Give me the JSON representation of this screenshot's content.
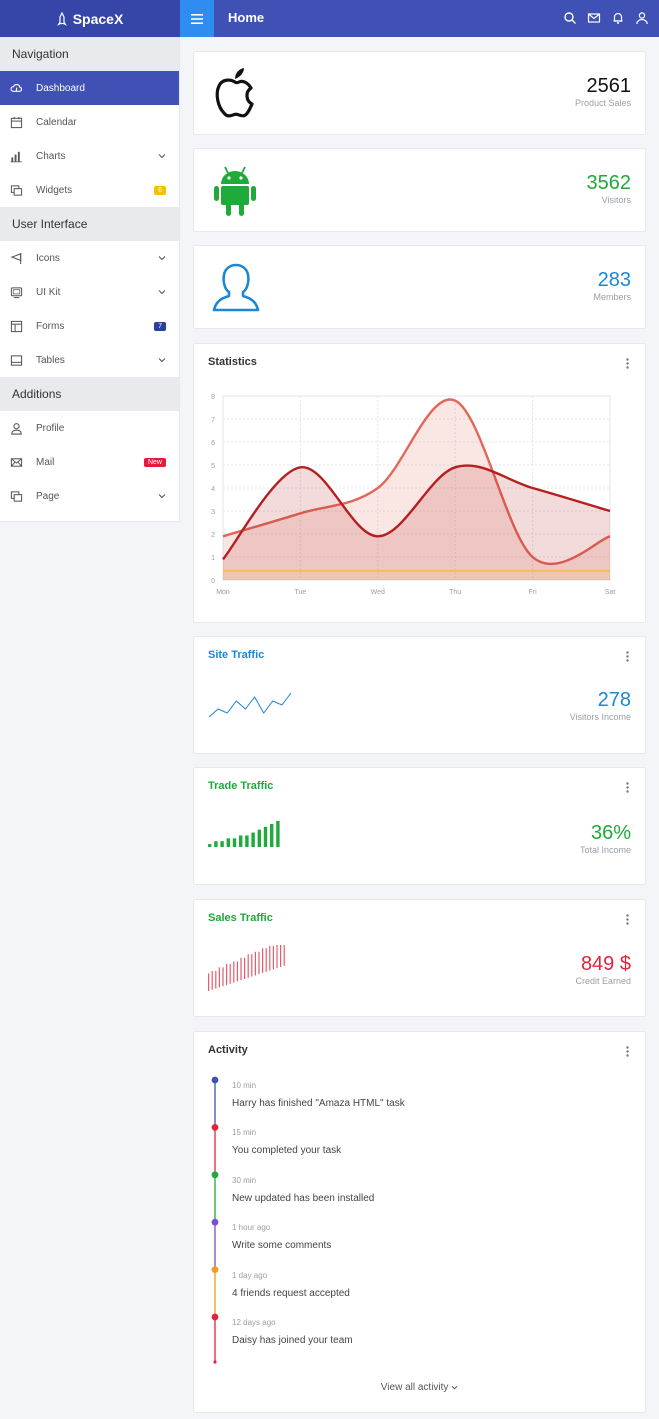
{
  "brand": {
    "name": "SpaceX",
    "logo_icon": "rocket-icon"
  },
  "header": {
    "title": "Home",
    "icons": [
      "search-icon",
      "mail-icon",
      "bell-icon",
      "user-icon"
    ]
  },
  "sidebar": {
    "sections": [
      {
        "title": "Navigation",
        "items": [
          {
            "label": "Dashboard",
            "icon": "cloud-icon",
            "active": true
          },
          {
            "label": "Calendar",
            "icon": "calendar-icon"
          },
          {
            "label": "Charts",
            "icon": "bar-chart-icon",
            "has_children": true
          },
          {
            "label": "Widgets",
            "icon": "widgets-icon",
            "badge": "6"
          }
        ]
      },
      {
        "title": "User Interface",
        "items": [
          {
            "label": "Icons",
            "icon": "flag-icon",
            "has_children": true
          },
          {
            "label": "UI Kit",
            "icon": "monitor-icon",
            "has_children": true
          },
          {
            "label": "Forms",
            "icon": "form-icon",
            "badge": "7"
          },
          {
            "label": "Tables",
            "icon": "table-icon",
            "has_children": true
          }
        ]
      },
      {
        "title": "Additions",
        "items": [
          {
            "label": "Profile",
            "icon": "person-icon"
          },
          {
            "label": "Mail",
            "icon": "envelope-icon",
            "badge": "New"
          },
          {
            "label": "Page",
            "icon": "pages-icon",
            "has_children": true
          }
        ]
      }
    ]
  },
  "stats": [
    {
      "value": "2561",
      "label": "Product Sales",
      "icon": "apple-icon",
      "color": "#111111"
    },
    {
      "value": "3562",
      "label": "Visitors",
      "icon": "android-icon",
      "color": "#1faa3a"
    },
    {
      "value": "283",
      "label": "Members",
      "icon": "member-icon",
      "color": "#1d88d2"
    }
  ],
  "statistics": {
    "title": "Statistics",
    "chart_data": {
      "type": "area",
      "categories": [
        "Mon",
        "Tue",
        "Wed",
        "Thu",
        "Fri",
        "Sat"
      ],
      "ylim": [
        0,
        8
      ],
      "yticks": [
        0,
        1,
        2,
        3,
        4,
        5,
        6,
        7,
        8
      ],
      "grid": true,
      "series": [
        {
          "values": [
            1.9,
            2.9,
            4.0,
            7.8,
            1.0,
            1.9
          ],
          "color": "#e0675a"
        },
        {
          "values": [
            0.9,
            4.9,
            1.9,
            4.9,
            4.0,
            3.0
          ],
          "color": "#b51f1f"
        },
        {
          "values": [
            0.4,
            0.4,
            0.4,
            0.4,
            0.4,
            0.4
          ],
          "color": "#f5c24a"
        }
      ]
    }
  },
  "traffic": [
    {
      "title": "Site Traffic",
      "value": "278",
      "label": "Visitors Income",
      "color": "#1d88d2",
      "chart_data": {
        "type": "line",
        "values": [
          2,
          4,
          3,
          6,
          4,
          7,
          3,
          6,
          5,
          8
        ]
      }
    },
    {
      "title": "Trade Traffic",
      "value": "36%",
      "label": "Total Income",
      "color": "#1faa3a",
      "chart_data": {
        "type": "bar",
        "values": [
          1,
          2,
          2,
          3,
          3,
          4,
          4,
          5,
          6,
          7,
          8,
          9
        ]
      }
    },
    {
      "title": "Sales Traffic",
      "value": "849 $",
      "label": "Credit Earned",
      "color": "#e0243c",
      "chart_data": {
        "type": "bar",
        "values": [
          3,
          4,
          3,
          5,
          4,
          6,
          5,
          6,
          5,
          7,
          6,
          8,
          7,
          8,
          7,
          9,
          8,
          9,
          8,
          10,
          9,
          10
        ]
      }
    }
  ],
  "activity": {
    "title": "Activity",
    "items": [
      {
        "time": "10 min",
        "text": "Harry has finished \"Amaza HTML\" task",
        "color": "#3f51b5"
      },
      {
        "time": "15 min",
        "text": "You completed your task",
        "color": "#e0243c"
      },
      {
        "time": "30 min",
        "text": "New updated has been installed",
        "color": "#1faa3a"
      },
      {
        "time": "1 hour ago",
        "text": "Write some comments",
        "color": "#7b4fcf"
      },
      {
        "time": "1 day ago",
        "text": "4 friends request accepted",
        "color": "#f29b1d"
      },
      {
        "time": "12 days ago",
        "text": "Daisy has joined your team",
        "color": "#e0243c"
      }
    ],
    "view_all": "View all activity"
  }
}
